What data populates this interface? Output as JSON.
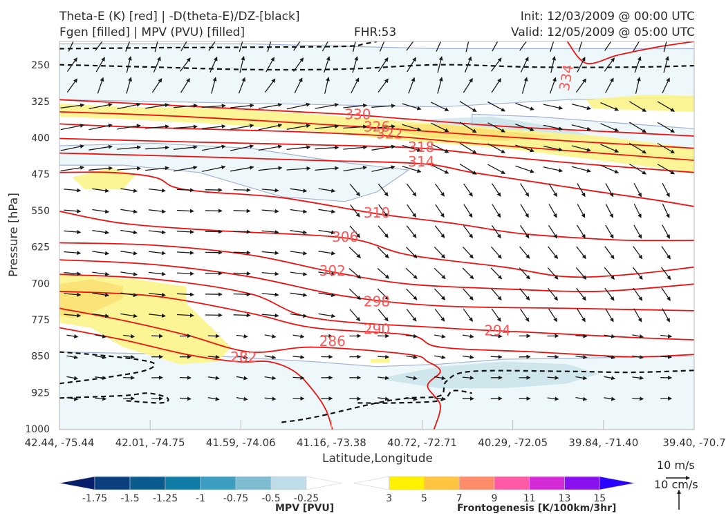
{
  "title": {
    "left_line1": "Theta-E (K) [red] | -D(theta-E)/DZ-[black]",
    "left_line2": "Fgen [filled] | MPV (PVU) [filled]",
    "center": "FHR:53",
    "right_line1": "Init: 12/03/2009 @ 00:00 UTC",
    "right_line2": "Valid: 12/05/2009 @ 05:00 UTC"
  },
  "chart_data": {
    "type": "cross-section",
    "xlabel": "Latitude,Longitude",
    "ylabel": "Pressure [hPa]",
    "x_ticks": [
      "42.44, -75.44",
      "42.01, -74.75",
      "41.59, -74.06",
      "41.16, -73.38",
      "40.72, -72.71",
      "40.29, -72.05",
      "39.84, -71.40",
      "39.40, -70.7"
    ],
    "y_ticks": [
      250,
      325,
      400,
      475,
      550,
      625,
      700,
      775,
      850,
      925,
      1000
    ],
    "ylim": [
      1000,
      200
    ],
    "theta_e_labels": [
      {
        "text": "334",
        "x": 0.8,
        "p": 275
      },
      {
        "text": "330",
        "x": 0.47,
        "p": 352
      },
      {
        "text": "326",
        "x": 0.5,
        "p": 378
      },
      {
        "text": "322",
        "x": 0.52,
        "p": 392
      },
      {
        "text": "318",
        "x": 0.57,
        "p": 420
      },
      {
        "text": "314",
        "x": 0.57,
        "p": 450
      },
      {
        "text": "310",
        "x": 0.5,
        "p": 555
      },
      {
        "text": "306",
        "x": 0.45,
        "p": 605
      },
      {
        "text": "302",
        "x": 0.43,
        "p": 675
      },
      {
        "text": "298",
        "x": 0.5,
        "p": 738
      },
      {
        "text": "294",
        "x": 0.69,
        "p": 798
      },
      {
        "text": "290",
        "x": 0.5,
        "p": 795
      },
      {
        "text": "286",
        "x": 0.43,
        "p": 820
      },
      {
        "text": "282",
        "x": 0.29,
        "p": 853
      }
    ],
    "theta_e_lines": [
      {
        "v": 334,
        "pts": [
          [
            0.8,
            200
          ],
          [
            0.83,
            245
          ],
          [
            0.88,
            228
          ],
          [
            0.94,
            212
          ],
          [
            1,
            200
          ]
        ]
      },
      {
        "v": 330,
        "pts": [
          [
            0,
            320
          ],
          [
            0.15,
            330
          ],
          [
            0.3,
            340
          ],
          [
            0.45,
            350
          ],
          [
            0.55,
            360
          ],
          [
            0.7,
            375
          ],
          [
            0.85,
            385
          ],
          [
            1,
            395
          ]
        ]
      },
      {
        "v": 326,
        "pts": [
          [
            0,
            345
          ],
          [
            0.15,
            352
          ],
          [
            0.3,
            362
          ],
          [
            0.5,
            378
          ],
          [
            0.65,
            392
          ],
          [
            0.8,
            405
          ],
          [
            1,
            420
          ]
        ]
      },
      {
        "v": 322,
        "pts": [
          [
            0,
            370
          ],
          [
            0.15,
            378
          ],
          [
            0.35,
            385
          ],
          [
            0.52,
            395
          ],
          [
            0.65,
            410
          ],
          [
            0.8,
            425
          ],
          [
            1,
            445
          ]
        ]
      },
      {
        "v": 318,
        "pts": [
          [
            0,
            400
          ],
          [
            0.2,
            407
          ],
          [
            0.4,
            413
          ],
          [
            0.57,
            420
          ],
          [
            0.7,
            438
          ],
          [
            0.85,
            455
          ],
          [
            1,
            470
          ]
        ]
      },
      {
        "v": 314,
        "pts": [
          [
            0,
            430
          ],
          [
            0.2,
            437
          ],
          [
            0.4,
            445
          ],
          [
            0.57,
            452
          ],
          [
            0.65,
            470
          ],
          [
            0.75,
            490
          ],
          [
            0.85,
            510
          ],
          [
            0.93,
            525
          ],
          [
            1,
            540
          ]
        ]
      },
      {
        "v": 310,
        "pts": [
          [
            0,
            470
          ],
          [
            0.08,
            470
          ],
          [
            0.15,
            480
          ],
          [
            0.18,
            500
          ],
          [
            0.23,
            510
          ],
          [
            0.35,
            522
          ],
          [
            0.5,
            555
          ],
          [
            0.62,
            575
          ],
          [
            0.72,
            595
          ],
          [
            0.82,
            605
          ],
          [
            0.9,
            610
          ],
          [
            1,
            610
          ]
        ]
      },
      {
        "v": 306,
        "pts": [
          [
            0,
            550
          ],
          [
            0.1,
            575
          ],
          [
            0.25,
            590
          ],
          [
            0.45,
            605
          ],
          [
            0.55,
            640
          ],
          [
            0.7,
            665
          ],
          [
            0.8,
            685
          ],
          [
            0.9,
            680
          ],
          [
            1,
            665
          ]
        ]
      },
      {
        "v": 302,
        "pts": [
          [
            0,
            615
          ],
          [
            0.15,
            620
          ],
          [
            0.3,
            640
          ],
          [
            0.43,
            675
          ],
          [
            0.55,
            700
          ],
          [
            0.7,
            710
          ],
          [
            0.85,
            715
          ],
          [
            1,
            700
          ]
        ]
      },
      {
        "v": 298,
        "pts": [
          [
            0,
            650
          ],
          [
            0.15,
            660
          ],
          [
            0.3,
            685
          ],
          [
            0.45,
            725
          ],
          [
            0.6,
            745
          ],
          [
            0.8,
            750
          ],
          [
            1,
            755
          ]
        ]
      },
      {
        "v": 294,
        "pts": [
          [
            0,
            680
          ],
          [
            0.15,
            690
          ],
          [
            0.3,
            720
          ],
          [
            0.4,
            770
          ],
          [
            0.6,
            790
          ],
          [
            0.75,
            800
          ],
          [
            0.9,
            810
          ],
          [
            1,
            815
          ]
        ]
      },
      {
        "v": 290,
        "pts": [
          [
            0,
            715
          ],
          [
            0.15,
            725
          ],
          [
            0.3,
            760
          ],
          [
            0.4,
            790
          ],
          [
            0.55,
            805
          ],
          [
            0.6,
            830
          ],
          [
            0.75,
            840
          ],
          [
            0.9,
            850
          ],
          [
            1,
            845
          ]
        ]
      },
      {
        "v": 286,
        "pts": [
          [
            0,
            750
          ],
          [
            0.1,
            775
          ],
          [
            0.2,
            805
          ],
          [
            0.3,
            840
          ],
          [
            0.4,
            830
          ],
          [
            0.55,
            845
          ],
          [
            0.58,
            860
          ],
          [
            0.6,
            880
          ],
          [
            0.58,
            910
          ],
          [
            0.6,
            950
          ],
          [
            0.59,
            1000
          ]
        ]
      },
      {
        "v": 282,
        "pts": [
          [
            0,
            790
          ],
          [
            0.1,
            815
          ],
          [
            0.2,
            845
          ],
          [
            0.28,
            860
          ],
          [
            0.33,
            860
          ],
          [
            0.37,
            880
          ],
          [
            0.4,
            920
          ],
          [
            0.42,
            960
          ],
          [
            0.43,
            1000
          ]
        ]
      }
    ],
    "fgen_levels": [
      3,
      5,
      7,
      9,
      11,
      13,
      15
    ],
    "fgen_colors": [
      "#ffffff",
      "#fff200",
      "#ffc440",
      "#ff8c6a",
      "#ff5aa5",
      "#d42ad8",
      "#8a12f2",
      "#2a00ff"
    ],
    "mpv_levels": [
      -1.75,
      -1.5,
      -1.25,
      -1.0,
      -0.75,
      -0.5,
      -0.25
    ],
    "mpv_colors": [
      "#08206b",
      "#0b3e7c",
      "#0a5c8e",
      "#117da6",
      "#3b9ec0",
      "#7ebcd1",
      "#bfdde6",
      "#ffffff"
    ],
    "colorbar_labels": {
      "mpv": "MPV [PVU]",
      "fgen": "Frontogenesis [K/100km/3hr]"
    },
    "reference_vectors": [
      "10 m/s",
      "10 cm/s"
    ]
  }
}
